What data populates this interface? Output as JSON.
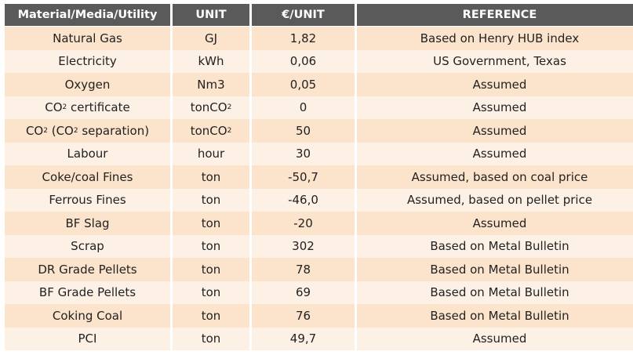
{
  "headers": [
    "Material/Media/Utility",
    "UNIT",
    "€/UNIT",
    "REFERENCE"
  ],
  "rows": [
    {
      "material": "Natural Gas",
      "unit": "GJ",
      "price": "1,82",
      "reference": "Based on Henry HUB index"
    },
    {
      "material": "Electricity",
      "unit": "kWh",
      "price": "0,06",
      "reference": "US Government, Texas"
    },
    {
      "material": "Oxygen",
      "unit": "Nm3",
      "price": "0,05",
      "reference": "Assumed"
    },
    {
      "material_pre": "CO",
      "material_sub": "2",
      "material_post": " certificate",
      "unit_pre": "tonCO",
      "unit_sub": "2",
      "price": "0",
      "reference": "Assumed"
    },
    {
      "material_pre": "CO",
      "material_sub": "2",
      "material_mid": " (CO",
      "material_sub2": "2",
      "material_post": " separation)",
      "unit_pre": "tonCO",
      "unit_sub": "2",
      "price": "50",
      "reference": "Assumed"
    },
    {
      "material": "Labour",
      "unit": "hour",
      "price": "30",
      "reference": "Assumed"
    },
    {
      "material": "Coke/coal Fines",
      "unit": "ton",
      "price": "-50,7",
      "reference": "Assumed, based on coal price"
    },
    {
      "material": "Ferrous Fines",
      "unit": "ton",
      "price": "-46,0",
      "reference": "Assumed, based on pellet price"
    },
    {
      "material": "BF Slag",
      "unit": "ton",
      "price": "-20",
      "reference": "Assumed"
    },
    {
      "material": "Scrap",
      "unit": "ton",
      "price": "302",
      "reference": "Based on Metal Bulletin"
    },
    {
      "material": "DR Grade Pellets",
      "unit": "ton",
      "price": "78",
      "reference": "Based on Metal Bulletin"
    },
    {
      "material": "BF Grade Pellets",
      "unit": "ton",
      "price": "69",
      "reference": "Based on Metal Bulletin"
    },
    {
      "material": "Coking Coal",
      "unit": "ton",
      "price": "76",
      "reference": "Based on Metal Bulletin"
    },
    {
      "material": "PCI",
      "unit": "ton",
      "price": "49,7",
      "reference": "Assumed"
    }
  ]
}
